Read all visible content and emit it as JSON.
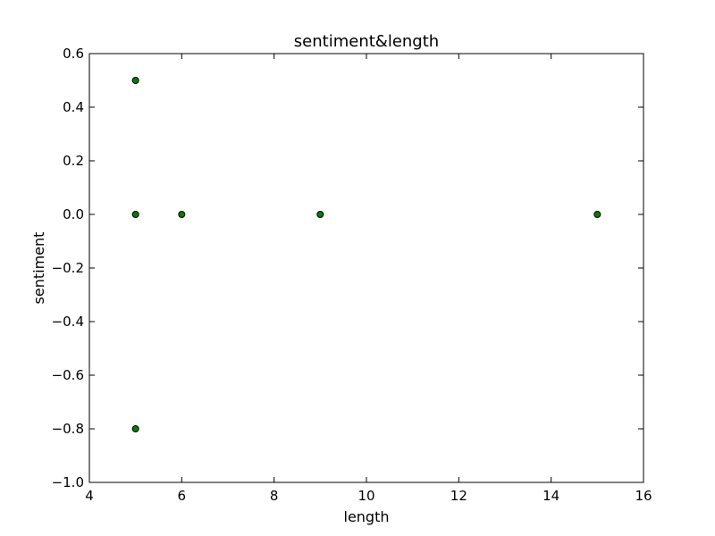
{
  "chart_data": {
    "type": "scatter",
    "title": "sentiment&length",
    "xlabel": "length",
    "ylabel": "sentiment",
    "xlim": [
      4,
      16
    ],
    "ylim": [
      -1.0,
      0.6
    ],
    "xticks": [
      4,
      6,
      8,
      10,
      12,
      14,
      16
    ],
    "xtick_labels": [
      "4",
      "6",
      "8",
      "10",
      "12",
      "14",
      "16"
    ],
    "yticks": [
      0.6,
      0.4,
      0.2,
      0.0,
      -0.2,
      -0.4,
      -0.6,
      -0.8,
      -1.0
    ],
    "ytick_labels": [
      "0.6",
      "0.4",
      "0.2",
      "0.0",
      "−0.2",
      "−0.4",
      "−0.6",
      "−0.8",
      "−1.0"
    ],
    "grid": false,
    "marker_color": "#008000",
    "points": [
      {
        "x": 5,
        "y": 0.5
      },
      {
        "x": 5,
        "y": 0.0
      },
      {
        "x": 6,
        "y": 0.0
      },
      {
        "x": 9,
        "y": 0.0
      },
      {
        "x": 15,
        "y": 0.0
      },
      {
        "x": 5,
        "y": -0.8
      }
    ]
  }
}
